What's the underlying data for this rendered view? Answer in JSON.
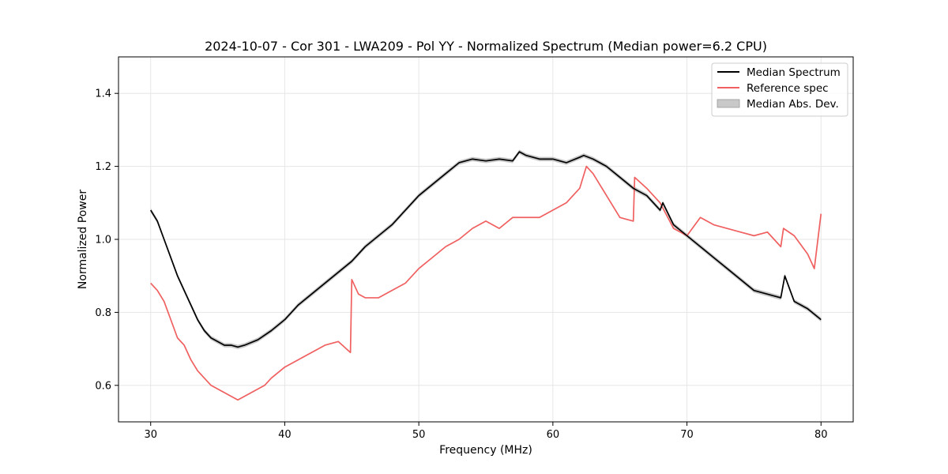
{
  "chart_data": {
    "type": "line",
    "title": "2024-10-07 - Cor 301 - LWA209 - Pol YY - Normalized Spectrum (Median power=6.2 CPU)",
    "xlabel": "Frequency (MHz)",
    "ylabel": "Normalized Power",
    "xlim": [
      27.6,
      82.4
    ],
    "ylim": [
      0.5,
      1.5
    ],
    "xticks": [
      30,
      40,
      50,
      60,
      70,
      80
    ],
    "yticks": [
      0.6,
      0.8,
      1.0,
      1.2,
      1.4
    ],
    "xtick_labels": [
      "30",
      "40",
      "50",
      "60",
      "70",
      "80"
    ],
    "ytick_labels": [
      "0.6",
      "0.8",
      "1.0",
      "1.2",
      "1.4"
    ],
    "grid": true,
    "legend_position": "top-right",
    "legend": [
      "Median Spectrum",
      "Reference spec",
      "Median Abs. Dev."
    ],
    "colors": {
      "median": "#000000",
      "reference": "#f06060",
      "mad_fill": "#c8c8c8"
    },
    "series": [
      {
        "name": "Median Spectrum",
        "x": [
          30,
          30.5,
          31,
          31.5,
          32,
          32.5,
          33,
          33.5,
          34,
          34.5,
          35,
          35.5,
          36,
          36.5,
          37,
          38,
          39,
          40,
          41,
          42,
          43,
          44,
          45,
          46,
          47,
          48,
          49,
          50,
          51,
          52,
          53,
          54,
          55,
          56,
          57,
          57.5,
          58,
          59,
          60,
          61,
          62,
          62.3,
          63,
          64,
          65,
          66,
          67,
          68,
          68.2,
          69,
          70,
          71,
          72,
          73,
          74,
          75,
          76,
          77,
          77.3,
          78,
          79,
          80
        ],
        "values": [
          1.08,
          1.05,
          1.0,
          0.95,
          0.9,
          0.86,
          0.82,
          0.78,
          0.75,
          0.73,
          0.72,
          0.71,
          0.71,
          0.705,
          0.71,
          0.725,
          0.75,
          0.78,
          0.82,
          0.85,
          0.88,
          0.91,
          0.94,
          0.98,
          1.01,
          1.04,
          1.08,
          1.12,
          1.15,
          1.18,
          1.21,
          1.22,
          1.215,
          1.22,
          1.215,
          1.24,
          1.23,
          1.22,
          1.22,
          1.21,
          1.225,
          1.23,
          1.22,
          1.2,
          1.17,
          1.14,
          1.12,
          1.08,
          1.1,
          1.04,
          1.01,
          0.98,
          0.95,
          0.92,
          0.89,
          0.86,
          0.85,
          0.84,
          0.9,
          0.83,
          0.81,
          0.78
        ]
      },
      {
        "name": "Reference spec",
        "x": [
          30,
          30.5,
          31,
          31.5,
          32,
          32.5,
          33,
          33.5,
          34,
          34.5,
          35,
          35.5,
          36,
          36.5,
          37,
          37.5,
          38,
          38.5,
          39,
          40,
          41,
          42,
          43,
          44,
          44.9,
          45,
          45.5,
          46,
          47,
          48,
          49,
          50,
          51,
          52,
          53,
          54,
          55,
          56,
          57,
          58,
          59,
          60,
          61,
          62,
          62.5,
          63,
          64,
          65,
          66,
          66.1,
          67,
          68,
          69,
          70,
          71,
          72,
          73,
          74,
          75,
          76,
          77,
          77.2,
          78,
          79,
          79.5,
          80
        ],
        "values": [
          0.88,
          0.86,
          0.83,
          0.78,
          0.73,
          0.71,
          0.67,
          0.64,
          0.62,
          0.6,
          0.59,
          0.58,
          0.57,
          0.56,
          0.57,
          0.58,
          0.59,
          0.6,
          0.62,
          0.65,
          0.67,
          0.69,
          0.71,
          0.72,
          0.69,
          0.89,
          0.85,
          0.84,
          0.84,
          0.86,
          0.88,
          0.92,
          0.95,
          0.98,
          1.0,
          1.03,
          1.05,
          1.03,
          1.06,
          1.06,
          1.06,
          1.08,
          1.1,
          1.14,
          1.2,
          1.18,
          1.12,
          1.06,
          1.05,
          1.17,
          1.14,
          1.1,
          1.03,
          1.01,
          1.06,
          1.04,
          1.03,
          1.02,
          1.01,
          1.02,
          0.98,
          1.03,
          1.01,
          0.96,
          0.92,
          1.07
        ]
      }
    ]
  }
}
